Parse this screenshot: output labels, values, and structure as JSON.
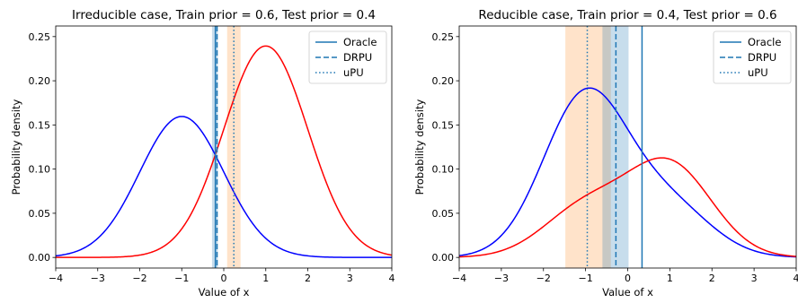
{
  "chart_data": [
    {
      "type": "line",
      "title": "Irreducible case, Train prior = 0.6, Test prior = 0.4",
      "xlabel": "Value of x",
      "ylabel": "Probability density",
      "xlim": [
        -4,
        4
      ],
      "ylim": [
        -0.012,
        0.262
      ],
      "xticks": [
        -4,
        -3,
        -2,
        -1,
        0,
        1,
        2,
        3,
        4
      ],
      "xtick_labels": [
        "−4",
        "−3",
        "−2",
        "−1",
        "0",
        "1",
        "2",
        "3",
        "4"
      ],
      "yticks": [
        0.0,
        0.05,
        0.1,
        0.15,
        0.2,
        0.25
      ],
      "ytick_labels": [
        "0.00",
        "0.05",
        "0.10",
        "0.15",
        "0.20",
        "0.25"
      ],
      "grid": false,
      "legend_position": "top-right",
      "density_curves": [
        {
          "color": "#0000ff",
          "components": [
            {
              "weight": 0.4,
              "mean": -1.0,
              "sd": 1.0
            }
          ]
        },
        {
          "color": "#ff0000",
          "components": [
            {
              "weight": 0.6,
              "mean": 1.0,
              "sd": 1.0
            }
          ]
        }
      ],
      "bands": [
        {
          "from": -0.28,
          "to": -0.14,
          "color": "#1f77b4",
          "opacity": 0.25
        },
        {
          "from": 0.08,
          "to": 0.4,
          "color": "#ff7f0e",
          "opacity": 0.22
        }
      ],
      "series": [
        {
          "name": "Oracle",
          "style": "solid",
          "color": "#1f77b4",
          "x": -0.2
        },
        {
          "name": "DRPU",
          "style": "dashed",
          "color": "#1f77b4",
          "x": -0.16
        },
        {
          "name": "uPU",
          "style": "dotted",
          "color": "#1f77b4",
          "x": 0.24
        }
      ]
    },
    {
      "type": "line",
      "title": "Reducible case, Train prior = 0.4, Test prior = 0.6",
      "xlabel": "Value of x",
      "ylabel": "Probability density",
      "xlim": [
        -4,
        4
      ],
      "ylim": [
        -0.012,
        0.262
      ],
      "xticks": [
        -4,
        -3,
        -2,
        -1,
        0,
        1,
        2,
        3,
        4
      ],
      "xtick_labels": [
        "−4",
        "−3",
        "−2",
        "−1",
        "0",
        "1",
        "2",
        "3",
        "4"
      ],
      "yticks": [
        0.0,
        0.05,
        0.1,
        0.15,
        0.2,
        0.25
      ],
      "ytick_labels": [
        "0.00",
        "0.05",
        "0.10",
        "0.15",
        "0.20",
        "0.25"
      ],
      "grid": false,
      "legend_position": "top-right",
      "density_curves": [
        {
          "color": "#0000ff",
          "components": [
            {
              "weight": 0.46,
              "mean": -1.0,
              "sd": 1.0
            },
            {
              "weight": 0.14,
              "mean": 1.0,
              "sd": 1.0
            }
          ]
        },
        {
          "color": "#ff0000",
          "components": [
            {
              "weight": 0.26,
              "mean": 1.0,
              "sd": 1.0
            },
            {
              "weight": 0.14,
              "mean": -1.0,
              "sd": 1.0
            }
          ]
        }
      ],
      "bands": [
        {
          "from": -1.48,
          "to": -0.4,
          "color": "#ff7f0e",
          "opacity": 0.22
        },
        {
          "from": -0.6,
          "to": 0.02,
          "color": "#1f77b4",
          "opacity": 0.25
        }
      ],
      "series": [
        {
          "name": "Oracle",
          "style": "solid",
          "color": "#1f77b4",
          "x": 0.34
        },
        {
          "name": "DRPU",
          "style": "dashed",
          "color": "#1f77b4",
          "x": -0.28
        },
        {
          "name": "uPU",
          "style": "dotted",
          "color": "#1f77b4",
          "x": -0.96
        }
      ]
    }
  ]
}
